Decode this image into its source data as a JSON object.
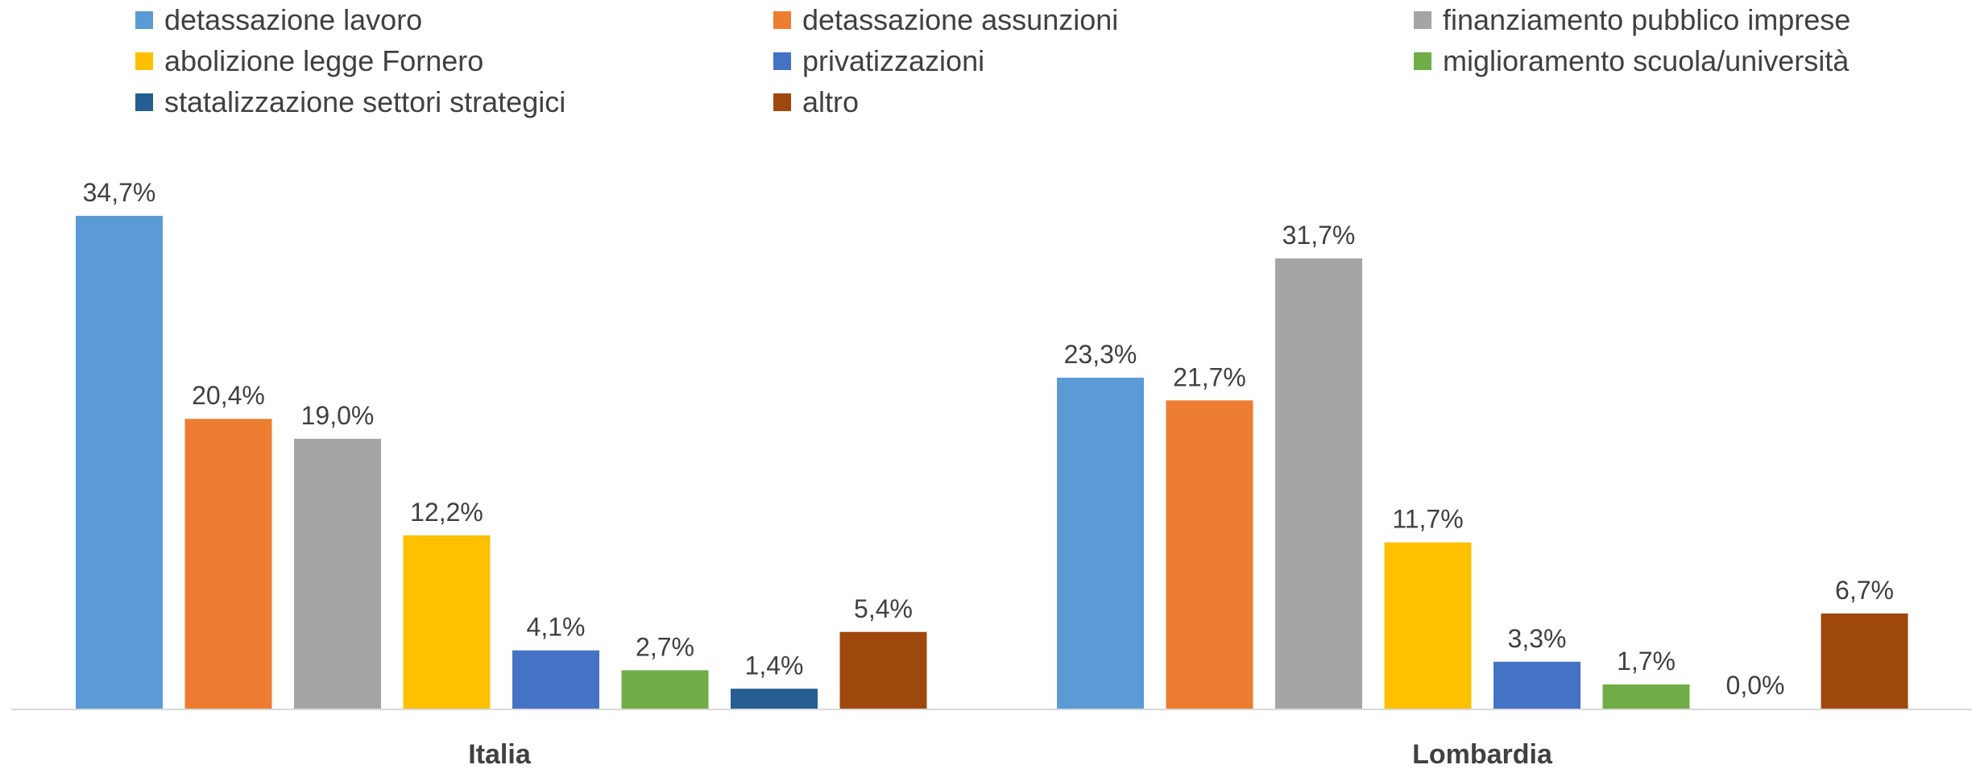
{
  "chart_data": {
    "type": "bar",
    "categories": [
      "Italia",
      "Lombardia"
    ],
    "series": [
      {
        "name": "detassazione lavoro",
        "color": "#5B9BD5",
        "values": [
          34.7,
          23.3
        ],
        "labels": [
          "34,7%",
          "23,3%"
        ]
      },
      {
        "name": "detassazione assunzioni",
        "color": "#ED7D31",
        "values": [
          20.4,
          21.7
        ],
        "labels": [
          "20,4%",
          "21,7%"
        ]
      },
      {
        "name": "finanziamento pubblico imprese",
        "color": "#A5A5A5",
        "values": [
          19.0,
          31.7
        ],
        "labels": [
          "19,0%",
          "31,7%"
        ]
      },
      {
        "name": "abolizione legge Fornero",
        "color": "#FFC000",
        "values": [
          12.2,
          11.7
        ],
        "labels": [
          "12,2%",
          "11,7%"
        ]
      },
      {
        "name": "privatizzazioni",
        "color": "#4472C4",
        "values": [
          4.1,
          3.3
        ],
        "labels": [
          "4,1%",
          "3,3%"
        ]
      },
      {
        "name": "miglioramento scuola/università",
        "color": "#70AD47",
        "values": [
          2.7,
          1.7
        ],
        "labels": [
          "2,7%",
          "1,7%"
        ]
      },
      {
        "name": "statalizzazione settori strategici",
        "color": "#255E91",
        "values": [
          1.4,
          0.0
        ],
        "labels": [
          "1,4%",
          "0,0%"
        ]
      },
      {
        "name": "altro",
        "color": "#9E480E",
        "values": [
          5.4,
          6.7
        ],
        "labels": [
          "5,4%",
          "6,7%"
        ]
      }
    ],
    "ylim": [
      0,
      35
    ],
    "grid": false,
    "legend": "top",
    "xlabel": "",
    "ylabel": ""
  }
}
